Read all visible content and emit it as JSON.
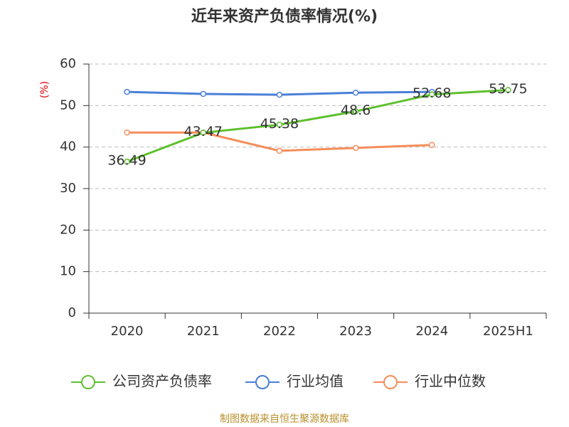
{
  "chart_data": {
    "type": "line",
    "title": "近年来资产负债率情况(%)",
    "y_label": "(%)",
    "categories": [
      "2020",
      "2021",
      "2022",
      "2023",
      "2024",
      "2025H1"
    ],
    "series": [
      {
        "name": "公司资产负债率",
        "color": "#5ec02e",
        "values": [
          36.49,
          43.47,
          45.38,
          48.6,
          52.68,
          53.75
        ]
      },
      {
        "name": "行业均值",
        "color": "#4a7fd8",
        "values": [
          53.3,
          52.8,
          52.6,
          53.1,
          53.3,
          null
        ]
      },
      {
        "name": "行业中位数",
        "color": "#f58d5a",
        "values": [
          43.5,
          43.5,
          39.1,
          39.8,
          40.5,
          null
        ]
      }
    ],
    "ylim": [
      0,
      60
    ],
    "yticks": [
      0,
      10,
      20,
      30,
      40,
      50,
      60
    ],
    "grid": true,
    "source": "制图数据来自恒生聚源数据库"
  }
}
